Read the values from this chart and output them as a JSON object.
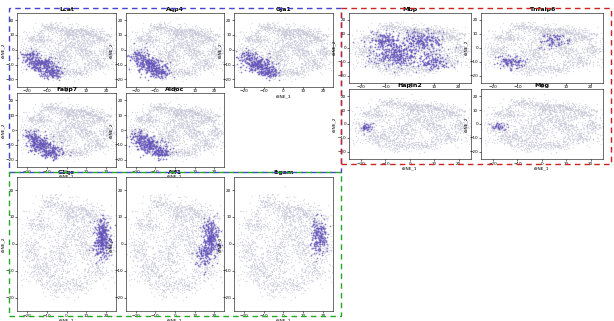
{
  "panels": {
    "blue_box": {
      "color": "#4444cc",
      "genes": [
        "Lcat",
        "Aqp4",
        "Gja1",
        "Fabp7",
        "Aldoc"
      ],
      "highlight_type": "astrocyte"
    },
    "red_box": {
      "color": "#cc2222",
      "genes": [
        "Mbp",
        "Tnfaip6",
        "Hapln2",
        "Mog"
      ],
      "highlight_type": "oligodendrocyte"
    },
    "green_box": {
      "color": "#22aa22",
      "genes": [
        "C1qc",
        "Aif1",
        "Itgam"
      ],
      "highlight_type": "microglia"
    }
  },
  "bg_color": "#ffffff",
  "point_bg_color": "#c8c8d8",
  "point_hi_color": "#6655bb",
  "xlim": [
    -25,
    25
  ],
  "ylim": [
    -25,
    25
  ],
  "xticks": [
    -20,
    -10,
    0,
    10,
    20
  ],
  "yticks": [
    -20,
    -10,
    0,
    10,
    20
  ],
  "xlabel": "tSNE_1",
  "ylabel": "tSNE_2",
  "clusters": [
    [
      2,
      12,
      3.5,
      2.5,
      180
    ],
    [
      10,
      12,
      2.5,
      2.0,
      120
    ],
    [
      17,
      8,
      3.0,
      2.5,
      150
    ],
    [
      20,
      -2,
      2.5,
      3.0,
      130
    ],
    [
      15,
      -10,
      3.5,
      2.5,
      140
    ],
    [
      5,
      -15,
      3.0,
      2.0,
      110
    ],
    [
      -5,
      -15,
      3.5,
      2.5,
      130
    ],
    [
      -13,
      -10,
      4.0,
      3.0,
      200
    ],
    [
      -18,
      -2,
      3.0,
      3.0,
      140
    ],
    [
      -15,
      8,
      3.5,
      2.5,
      150
    ],
    [
      -8,
      15,
      3.0,
      2.0,
      120
    ],
    [
      5,
      5,
      5.0,
      4.0,
      250
    ],
    [
      -3,
      -5,
      4.0,
      3.5,
      180
    ],
    [
      10,
      -2,
      3.0,
      3.0,
      120
    ],
    [
      -2,
      2,
      6.0,
      5.0,
      100
    ]
  ],
  "astrocyte_clusters": [
    [
      -13,
      -10,
      3.5,
      2.5,
      180
    ],
    [
      -8,
      -15,
      3.0,
      2.0,
      120
    ],
    [
      -18,
      -5,
      2.5,
      2.5,
      80
    ]
  ],
  "oligodendrocyte_clusters": {
    "Mbp": [
      [
        -5,
        -5,
        5.0,
        4.0,
        300
      ],
      [
        5,
        5,
        4.0,
        3.5,
        200
      ],
      [
        -10,
        5,
        3.5,
        3.0,
        150
      ],
      [
        10,
        -10,
        3.5,
        3.0,
        130
      ]
    ],
    "Tnfaip6": [
      [
        -13,
        -10,
        2.5,
        2.0,
        100
      ],
      [
        5,
        5,
        3.0,
        2.5,
        80
      ]
    ],
    "Hapln2": [
      [
        -18,
        -2,
        1.5,
        1.5,
        40
      ]
    ],
    "Mog": [
      [
        -18,
        -2,
        1.5,
        1.5,
        35
      ]
    ]
  },
  "microglia_clusters": {
    "C1qc": [
      [
        18,
        2,
        2.0,
        3.5,
        350
      ]
    ],
    "Aif1": [
      [
        18,
        2,
        2.0,
        3.5,
        300
      ],
      [
        14,
        -5,
        2.0,
        2.0,
        80
      ]
    ],
    "Itgam": [
      [
        18,
        3,
        2.0,
        3.0,
        200
      ]
    ]
  }
}
